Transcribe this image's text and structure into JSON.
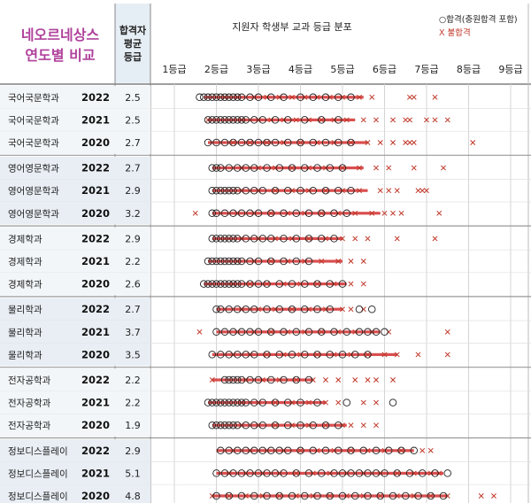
{
  "title_line1": "네오르네상스",
  "title_line2": "연도별 비교",
  "avg_header": [
    "합격자",
    "평균",
    "등급"
  ],
  "dist_header": "지원자 학생부 교과 등급 분포",
  "legend": {
    "pass": "○합격(충원합격 포함)",
    "fail": "X 불합격"
  },
  "colors": {
    "title": "#b0429c",
    "fail": "#c0392b",
    "pass": "#222222",
    "bar": "#d32f2f",
    "label_bg": "#e6eef5"
  },
  "chart_data": {
    "type": "scatter",
    "x_ticks": [
      "1등급",
      "2등급",
      "3등급",
      "4등급",
      "5등급",
      "6등급",
      "7등급",
      "8등급",
      "9등급"
    ],
    "xlim": [
      1,
      9
    ],
    "groups": [
      {
        "rows": [
          {
            "dept": "국어국문학과",
            "year": "2022",
            "avg": "2.5",
            "bar": [
              1.7,
              5.5
            ],
            "pass": [
              1.6,
              1.7,
              1.8,
              1.9,
              2.0,
              2.1,
              2.2,
              2.3,
              2.4,
              2.5,
              2.6,
              2.8,
              3.0,
              3.3,
              3.6,
              4.0,
              4.3,
              4.6,
              4.9,
              5.2
            ],
            "fail": [
              2.2,
              2.5,
              2.9,
              3.2,
              3.5,
              3.8,
              4.1,
              4.4,
              4.7,
              5.0,
              5.4,
              5.7,
              6.6,
              6.7,
              7.2
            ]
          },
          {
            "dept": "국어국문학과",
            "year": "2021",
            "avg": "2.5",
            "bar": [
              1.8,
              5.3
            ],
            "pass": [
              1.8,
              1.9,
              2.0,
              2.1,
              2.2,
              2.3,
              2.4,
              2.5,
              2.6,
              2.7,
              2.9,
              3.1,
              3.4,
              3.7,
              4.1,
              4.5,
              4.9
            ],
            "fail": [
              1.8,
              2.6,
              3.0,
              3.3,
              3.6,
              3.9,
              4.2,
              4.5,
              4.8,
              5.1,
              5.5,
              5.8,
              6.2,
              6.5,
              6.6,
              7.0,
              7.2,
              7.5
            ]
          },
          {
            "dept": "국어국문학과",
            "year": "2020",
            "avg": "2.7",
            "bar": [
              1.8,
              5.6
            ],
            "pass": [
              1.8,
              2.0,
              2.2,
              2.4,
              2.6,
              2.8,
              3.0,
              3.2,
              3.4,
              3.7,
              4.0,
              4.3,
              4.6,
              4.9,
              5.2
            ],
            "fail": [
              2.4,
              2.8,
              3.2,
              3.6,
              4.0,
              4.4,
              4.8,
              5.2,
              5.6,
              5.9,
              6.2,
              6.5,
              6.6,
              6.7,
              8.1
            ]
          }
        ]
      },
      {
        "rows": [
          {
            "dept": "영어영문학과",
            "year": "2022",
            "avg": "2.7",
            "bar": [
              1.9,
              5.5
            ],
            "pass": [
              1.9,
              2.0,
              2.1,
              2.3,
              2.5,
              2.7,
              2.9,
              3.2,
              3.5,
              3.8,
              4.1,
              4.4,
              4.7,
              5.0
            ],
            "fail": [
              2.6,
              3.0,
              3.4,
              3.8,
              4.2,
              4.6,
              5.0,
              5.4,
              5.8,
              6.1,
              6.7,
              7.4
            ]
          },
          {
            "dept": "영어영문학과",
            "year": "2021",
            "avg": "2.9",
            "bar": [
              1.9,
              5.6
            ],
            "pass": [
              1.9,
              2.0,
              2.1,
              2.2,
              2.3,
              2.4,
              2.5,
              2.7,
              2.9,
              3.1,
              3.4,
              3.7,
              4.0,
              4.3,
              4.6,
              4.9,
              5.2
            ],
            "fail": [
              2.6,
              3.0,
              3.4,
              3.8,
              4.2,
              4.6,
              5.0,
              5.4,
              5.9,
              6.1,
              6.3,
              6.8,
              6.9,
              7.0
            ]
          },
          {
            "dept": "영어영문학과",
            "year": "2020",
            "avg": "3.2",
            "bar": [
              1.9,
              5.9
            ],
            "pass": [
              1.9,
              2.0,
              2.2,
              2.4,
              2.6,
              2.8,
              3.0,
              3.3,
              3.6,
              3.9,
              4.2,
              4.5,
              4.8,
              5.1
            ],
            "fail": [
              1.5,
              2.5,
              2.9,
              3.3,
              3.7,
              4.1,
              4.5,
              4.9,
              5.3,
              5.7,
              6.0,
              6.2,
              6.4,
              7.3
            ]
          }
        ]
      },
      {
        "rows": [
          {
            "dept": "경제학과",
            "year": "2022",
            "avg": "2.9",
            "bar": [
              1.9,
              5.0
            ],
            "pass": [
              1.9,
              2.0,
              2.1,
              2.2,
              2.3,
              2.4,
              2.5,
              2.7,
              2.9,
              3.1,
              3.3,
              3.6,
              3.9,
              4.2,
              4.5,
              4.8
            ],
            "fail": [
              2.6,
              3.0,
              3.4,
              3.8,
              4.2,
              4.6,
              5.0,
              5.3,
              5.6,
              6.3,
              7.2
            ]
          },
          {
            "dept": "경제학과",
            "year": "2021",
            "avg": "2.2",
            "bar": [
              1.8,
              5.0
            ],
            "pass": [
              1.8,
              1.9,
              2.0,
              2.1,
              2.2,
              2.3,
              2.4,
              2.5,
              2.6,
              2.8,
              3.0,
              3.3,
              3.6,
              3.9,
              4.2
            ],
            "fail": [
              2.5,
              2.9,
              3.3,
              3.7,
              4.1,
              4.5,
              4.9,
              5.2,
              5.5
            ]
          },
          {
            "dept": "경제학과",
            "year": "2020",
            "avg": "2.6",
            "bar": [
              1.7,
              5.1
            ],
            "pass": [
              1.7,
              1.8,
              1.9,
              2.0,
              2.1,
              2.2,
              2.3,
              2.4,
              2.5,
              2.6,
              2.8,
              3.0,
              3.2,
              3.5,
              3.8,
              4.1,
              4.4,
              4.7,
              5.0
            ],
            "fail": [
              2.4,
              2.8,
              3.2,
              3.6,
              4.0,
              4.4,
              4.8,
              5.2,
              5.5
            ]
          }
        ]
      },
      {
        "rows": [
          {
            "dept": "물리학과",
            "year": "2022",
            "avg": "2.7",
            "bar": [
              2.0,
              5.0
            ],
            "pass": [
              2.0,
              2.1,
              2.3,
              2.5,
              2.7,
              2.9,
              3.2,
              3.5,
              3.8,
              4.1,
              4.4,
              4.7,
              5.4,
              5.7
            ],
            "fail": [
              2.6,
              3.0,
              3.4,
              3.8,
              4.2,
              4.6,
              5.0,
              5.2,
              5.5
            ]
          },
          {
            "dept": "물리학과",
            "year": "2021",
            "avg": "3.7",
            "bar": [
              2.0,
              5.9
            ],
            "pass": [
              2.0,
              2.2,
              2.4,
              2.6,
              2.8,
              3.0,
              3.3,
              3.6,
              3.9,
              4.2,
              4.5,
              4.8,
              5.1,
              5.4,
              5.6,
              5.8,
              6.0
            ],
            "fail": [
              1.6,
              2.5,
              2.9,
              3.3,
              3.7,
              4.1,
              4.5,
              4.9,
              5.3,
              5.7,
              6.1,
              7.5
            ]
          },
          {
            "dept": "물리학과",
            "year": "2020",
            "avg": "3.5",
            "bar": [
              1.9,
              6.3
            ],
            "pass": [
              1.9,
              2.1,
              2.3,
              2.5,
              2.7,
              2.9,
              3.2,
              3.5,
              3.8,
              4.1,
              4.4,
              4.7,
              5.0,
              5.3,
              5.6
            ],
            "fail": [
              2.4,
              2.8,
              3.2,
              3.6,
              4.0,
              4.4,
              4.8,
              5.2,
              5.6,
              6.0,
              6.3,
              6.8,
              7.5
            ]
          }
        ]
      },
      {
        "rows": [
          {
            "dept": "전자공학과",
            "year": "2022",
            "avg": "2.2",
            "bar": [
              1.9,
              4.3
            ],
            "pass": [
              2.2,
              2.3,
              2.4,
              2.5,
              2.6,
              2.8,
              3.0,
              3.3,
              3.6,
              3.9,
              4.2
            ],
            "fail": [
              1.9,
              2.7,
              3.1,
              3.5,
              3.9,
              4.3,
              4.6,
              4.9,
              5.3,
              5.6,
              5.8,
              6.2
            ]
          },
          {
            "dept": "전자공학과",
            "year": "2021",
            "avg": "2.2",
            "bar": [
              1.8,
              4.6
            ],
            "pass": [
              1.8,
              1.9,
              2.0,
              2.1,
              2.2,
              2.3,
              2.4,
              2.5,
              2.6,
              2.7,
              2.9,
              3.1,
              3.4,
              3.7,
              4.0,
              4.4,
              5.1,
              6.2
            ],
            "fail": [
              2.6,
              3.0,
              3.4,
              3.8,
              4.2,
              4.6,
              4.9,
              5.5,
              5.8
            ]
          },
          {
            "dept": "전자공학과",
            "year": "2020",
            "avg": "1.9",
            "bar": [
              1.9,
              5.1
            ],
            "pass": [
              1.9,
              2.0,
              2.1,
              2.2,
              2.3,
              2.4,
              2.5,
              2.7,
              2.9,
              3.1,
              3.4,
              3.7,
              4.0,
              4.3,
              4.6,
              4.9
            ],
            "fail": [
              2.6,
              3.0,
              3.4,
              3.8,
              4.2,
              4.6,
              5.0,
              5.2,
              5.5,
              5.8
            ]
          }
        ]
      },
      {
        "rows": [
          {
            "dept": "정보디스플레이",
            "year": "2022",
            "avg": "2.9",
            "bar": [
              2.0,
              6.7
            ],
            "pass": [
              2.1,
              2.3,
              2.5,
              2.7,
              2.9,
              3.1,
              3.3,
              3.5,
              3.7,
              4.0,
              4.3,
              4.6,
              4.9,
              5.2,
              5.5,
              5.8,
              6.1,
              6.4,
              6.7
            ],
            "fail": [
              2.4,
              2.8,
              3.2,
              3.6,
              4.0,
              4.4,
              4.8,
              5.2,
              5.6,
              6.0,
              6.4,
              6.9,
              7.1
            ]
          },
          {
            "dept": "정보디스플레이",
            "year": "2021",
            "avg": "5.1",
            "bar": [
              2.0,
              7.4
            ],
            "pass": [
              2.0,
              2.2,
              2.4,
              2.6,
              2.8,
              3.0,
              3.2,
              3.4,
              3.6,
              3.9,
              4.2,
              4.5,
              4.8,
              5.0,
              5.2,
              5.4,
              5.6,
              5.8,
              6.0,
              6.3,
              6.6,
              6.9,
              7.2,
              7.5
            ],
            "fail": [
              2.3,
              2.7,
              3.1,
              3.5,
              3.9,
              4.3,
              4.7,
              5.1,
              5.5,
              5.9,
              6.3,
              6.7,
              7.1,
              7.3
            ]
          },
          {
            "dept": "정보디스플레이",
            "year": "2020",
            "avg": "4.8",
            "bar": [
              1.9,
              7.5
            ],
            "pass": [
              2.0,
              2.3,
              2.6,
              2.9,
              3.2,
              3.5,
              3.8,
              4.1,
              4.4,
              4.7,
              5.0,
              5.3,
              5.6,
              5.9,
              6.2,
              6.5,
              6.8,
              7.1,
              7.4
            ],
            "fail": [
              1.9,
              2.3,
              2.7,
              3.1,
              3.5,
              3.9,
              4.3,
              4.7,
              5.1,
              5.5,
              5.9,
              6.3,
              6.7,
              7.1,
              7.5,
              8.3,
              8.6
            ]
          }
        ]
      }
    ]
  }
}
